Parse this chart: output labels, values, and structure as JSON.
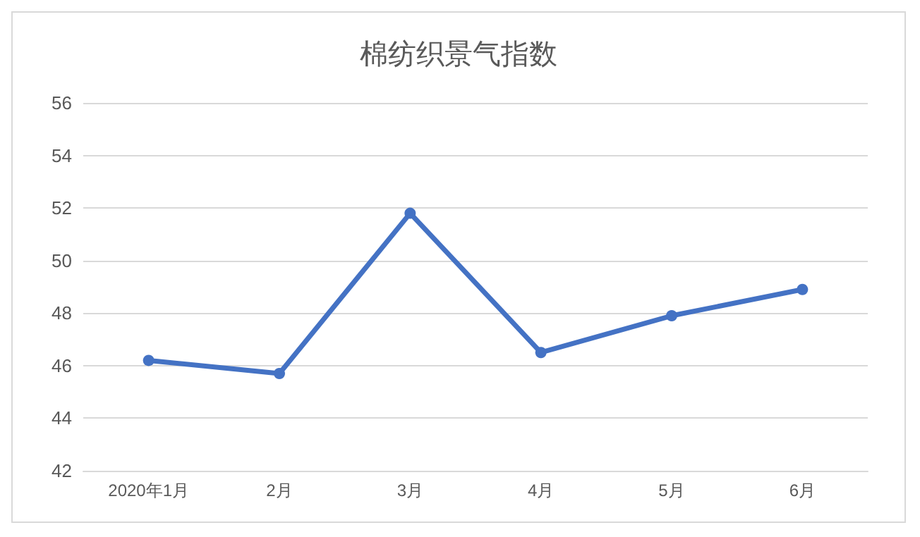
{
  "chart_data": {
    "type": "line",
    "title": "棉纺织景气指数",
    "categories": [
      "2020年1月",
      "2月",
      "3月",
      "4月",
      "5月",
      "6月"
    ],
    "series": [
      {
        "color": "#4472c4",
        "values": [
          46.2,
          45.7,
          51.8,
          46.5,
          47.9,
          48.9
        ]
      }
    ],
    "ylim": [
      42,
      56
    ],
    "yticks": [
      42,
      44,
      46,
      48,
      50,
      52,
      54,
      56
    ],
    "grid": "y",
    "marker": "circle",
    "line_style": "solid"
  }
}
